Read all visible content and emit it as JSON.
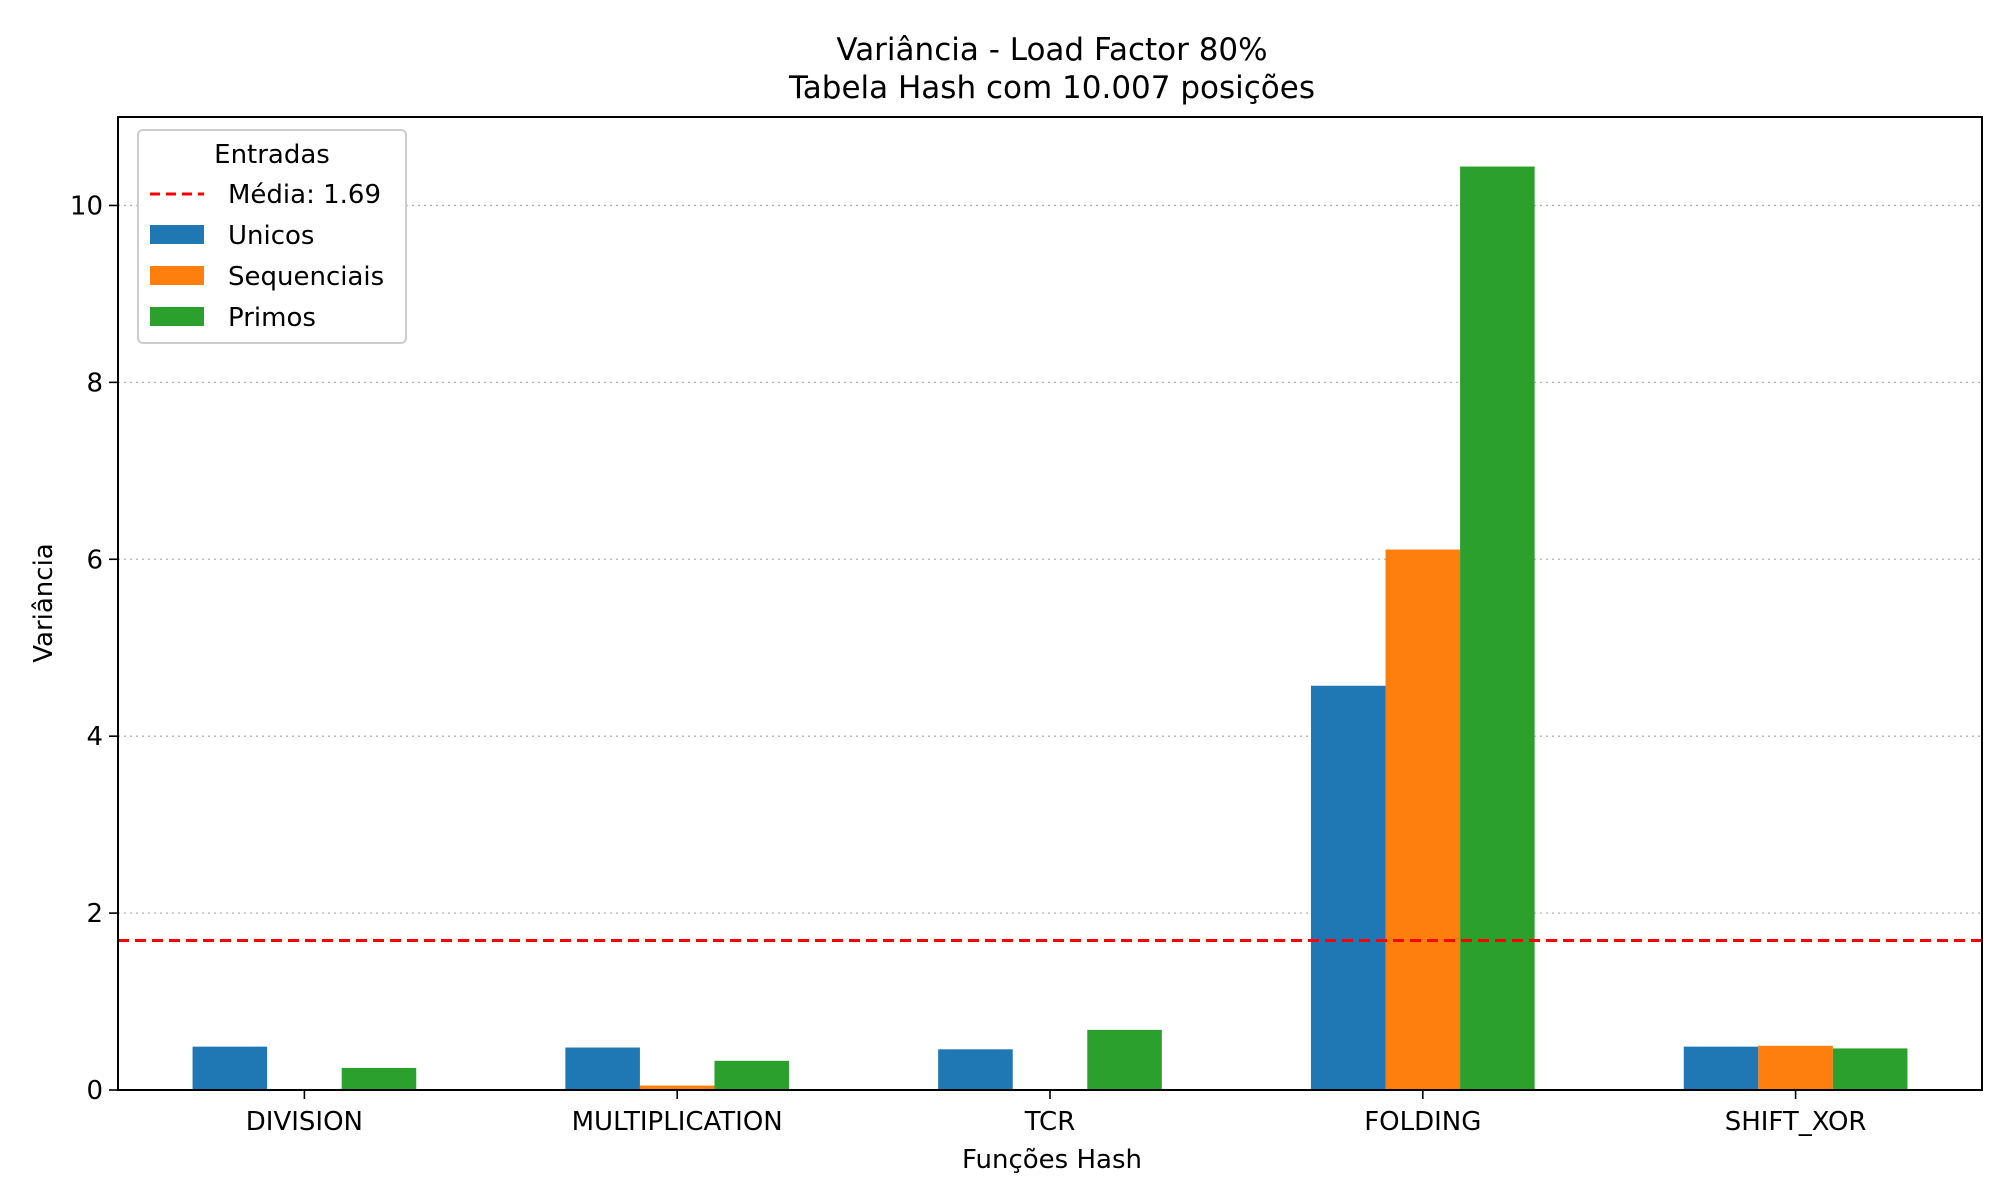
{
  "chart_data": {
    "type": "bar",
    "title": "Variância - Load Factor 80%",
    "subtitle": "Tabela Hash com 10.007 posições",
    "xlabel": "Funções Hash",
    "ylabel": "Variância",
    "categories": [
      "DIVISION",
      "MULTIPLICATION",
      "TCR",
      "FOLDING",
      "SHIFT_XOR"
    ],
    "series": [
      {
        "name": "Unicos",
        "color": "#1f77b4",
        "values": [
          0.49,
          0.48,
          0.46,
          4.57,
          0.49
        ]
      },
      {
        "name": "Sequenciais",
        "color": "#ff7f0e",
        "values": [
          0.0,
          0.05,
          0.0,
          6.11,
          0.5
        ]
      },
      {
        "name": "Primos",
        "color": "#2ca02c",
        "values": [
          0.25,
          0.33,
          0.68,
          10.44,
          0.47
        ]
      }
    ],
    "reference_line": {
      "label": "Média: 1.69",
      "value": 1.69,
      "color": "#ff0000",
      "style": "dashed"
    },
    "ylim": [
      0,
      11
    ],
    "yticks": [
      0,
      2,
      4,
      6,
      8,
      10
    ],
    "grid": "horizontal dotted",
    "legend": {
      "title": "Entradas",
      "placement": "top-left"
    }
  }
}
